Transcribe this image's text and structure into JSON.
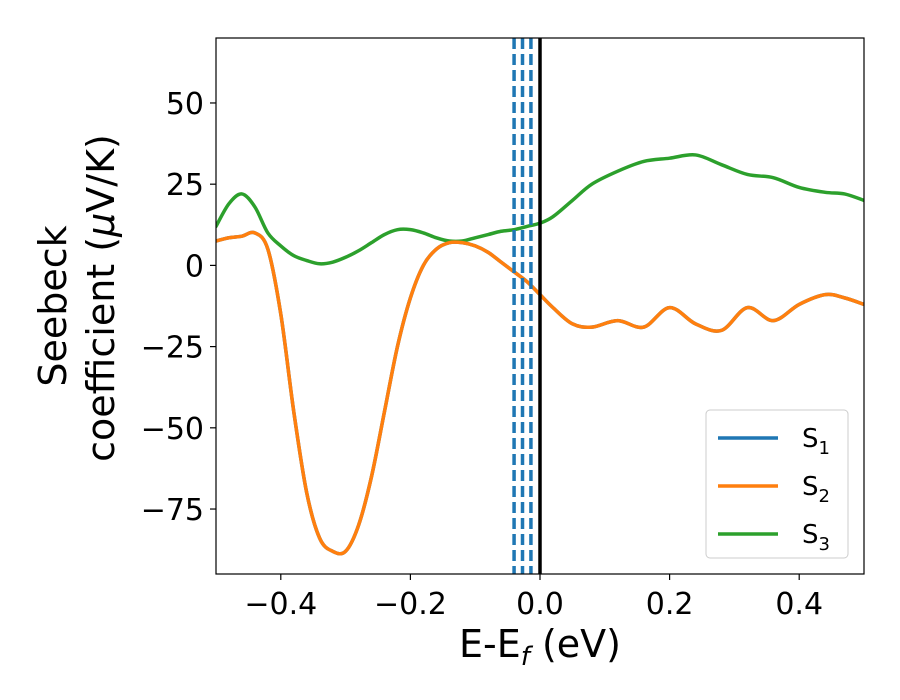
{
  "chart_data": {
    "type": "line",
    "title": "",
    "xlabel": {
      "main": "E-E",
      "sub": "f",
      "suffix": " (eV)"
    },
    "ylabel": {
      "line1": "Seebeck",
      "line2": "coefficient  (",
      "mu": "μ",
      "line2_end": "V/K)"
    },
    "xlim": [
      -0.5,
      0.5
    ],
    "ylim": [
      -95,
      70
    ],
    "xticks": [
      -0.4,
      -0.2,
      0.0,
      0.2,
      0.4
    ],
    "xtick_labels": [
      "−0.4",
      "−0.2",
      "0.0",
      "0.2",
      "0.4"
    ],
    "yticks": [
      50,
      25,
      0,
      -25,
      -50,
      -75
    ],
    "ytick_labels": [
      "50",
      "25",
      "0",
      "−25",
      "−50",
      "−75"
    ],
    "grid": false,
    "legend_position": "lower-right",
    "vlines": {
      "dashed": [
        -0.04,
        -0.027,
        -0.014
      ],
      "dashed_color": "#1f77b4",
      "solid": [
        0.0
      ],
      "solid_color": "#000000"
    },
    "series": [
      {
        "name": "S",
        "name_sub": "1",
        "color": "#1f77b4",
        "x": [
          -0.5,
          -0.48,
          -0.46,
          -0.44,
          -0.42,
          -0.4,
          -0.38,
          -0.36,
          -0.34,
          -0.32,
          -0.3,
          -0.28,
          -0.26,
          -0.24,
          -0.22,
          -0.2,
          -0.18,
          -0.16,
          -0.14,
          -0.12,
          -0.1,
          -0.08,
          -0.06,
          -0.04,
          -0.02,
          0.0,
          0.02,
          0.05,
          0.08,
          0.12,
          0.16,
          0.2,
          0.24,
          0.28,
          0.32,
          0.36,
          0.4,
          0.44,
          0.47,
          0.5
        ],
        "y": [
          7.5,
          8.5,
          9,
          10,
          5,
          -15,
          -45,
          -70,
          -84,
          -88,
          -88,
          -80,
          -65,
          -45,
          -25,
          -10,
          0,
          5,
          7,
          7,
          6,
          4,
          1,
          -2,
          -5,
          -9,
          -13,
          -18,
          -19,
          -17,
          -19,
          -13,
          -18,
          -20,
          -13,
          -17,
          -12,
          -9,
          -10,
          -12
        ]
      },
      {
        "name": "S",
        "name_sub": "2",
        "color": "#ff7f0e",
        "x": [
          -0.5,
          -0.48,
          -0.46,
          -0.44,
          -0.42,
          -0.4,
          -0.38,
          -0.36,
          -0.34,
          -0.32,
          -0.3,
          -0.28,
          -0.26,
          -0.24,
          -0.22,
          -0.2,
          -0.18,
          -0.16,
          -0.14,
          -0.12,
          -0.1,
          -0.08,
          -0.06,
          -0.04,
          -0.02,
          0.0,
          0.02,
          0.05,
          0.08,
          0.12,
          0.16,
          0.2,
          0.24,
          0.28,
          0.32,
          0.36,
          0.4,
          0.44,
          0.47,
          0.5
        ],
        "y": [
          7.5,
          8.5,
          9,
          10,
          5,
          -15,
          -45,
          -70,
          -84,
          -88,
          -88,
          -80,
          -65,
          -45,
          -25,
          -10,
          0,
          5,
          7,
          7,
          6,
          4,
          1,
          -2,
          -5,
          -9,
          -13,
          -18,
          -19,
          -17,
          -19,
          -13,
          -18,
          -20,
          -13,
          -17,
          -12,
          -9,
          -10,
          -12
        ]
      },
      {
        "name": "S",
        "name_sub": "3",
        "color": "#2ca02c",
        "x": [
          -0.5,
          -0.48,
          -0.46,
          -0.44,
          -0.42,
          -0.4,
          -0.38,
          -0.36,
          -0.34,
          -0.32,
          -0.3,
          -0.28,
          -0.26,
          -0.24,
          -0.22,
          -0.2,
          -0.18,
          -0.16,
          -0.14,
          -0.12,
          -0.1,
          -0.08,
          -0.06,
          -0.04,
          -0.02,
          0.0,
          0.02,
          0.05,
          0.08,
          0.12,
          0.16,
          0.2,
          0.24,
          0.28,
          0.32,
          0.36,
          0.4,
          0.44,
          0.47,
          0.5
        ],
        "y": [
          12,
          19,
          22,
          18,
          10,
          6,
          3,
          1.5,
          0.5,
          1,
          2.5,
          4.5,
          7,
          9.5,
          11,
          11,
          10,
          8.5,
          7.5,
          7.5,
          8.5,
          9.5,
          10.5,
          11,
          12,
          13,
          15,
          20,
          25,
          29,
          32,
          33,
          34,
          31,
          28,
          27,
          24,
          22.5,
          22,
          20
        ]
      }
    ]
  }
}
